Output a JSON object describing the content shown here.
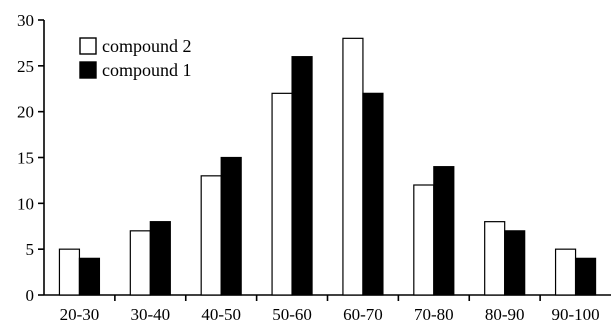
{
  "chart_data": {
    "type": "bar",
    "title": "",
    "xlabel": "",
    "ylabel": "",
    "categories": [
      "20-30",
      "30-40",
      "40-50",
      "50-60",
      "60-70",
      "70-80",
      "80-90",
      "90-100"
    ],
    "series": [
      {
        "name": "compound 2",
        "values": [
          5,
          7,
          13,
          22,
          28,
          12,
          8,
          5
        ],
        "color": "#ffffff"
      },
      {
        "name": "compound 1",
        "values": [
          4,
          8,
          15,
          26,
          22,
          14,
          7,
          4
        ],
        "color": "#000000"
      }
    ],
    "ylim": [
      0,
      30
    ],
    "yticks": [
      "0",
      "5",
      "10",
      "15",
      "20",
      "25",
      "30"
    ],
    "grid": false,
    "legend_position": "top-left"
  }
}
